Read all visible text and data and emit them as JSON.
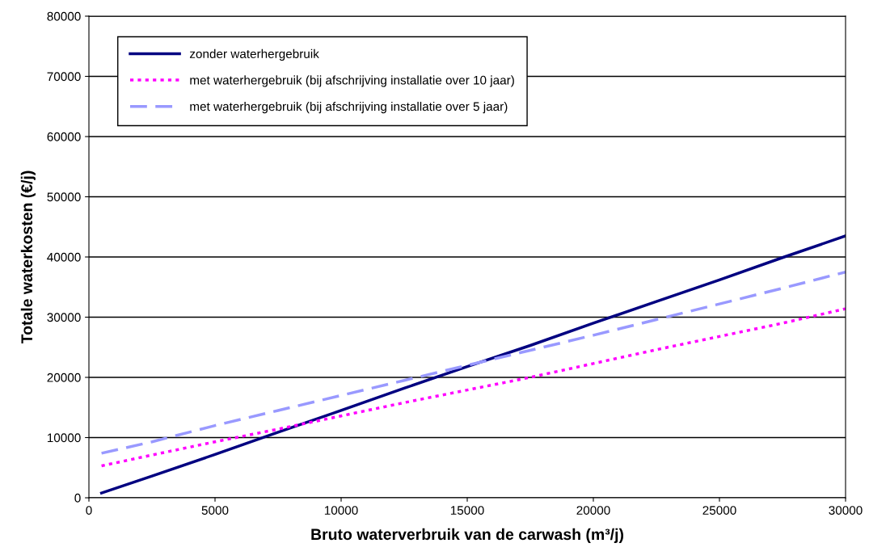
{
  "chart_data": {
    "type": "line",
    "xlabel": "Bruto waterverbruik van de carwash (m³/j)",
    "ylabel": "Totale waterkosten (€/j)",
    "x": [
      500,
      2500,
      5000,
      7500,
      10000,
      12500,
      15000,
      17500,
      20000,
      22500,
      25000,
      27500,
      30000
    ],
    "series": [
      {
        "name": "zonder waterhergebruik",
        "color": "#000080",
        "line_style": "solid",
        "values": [
          800,
          3600,
          7200,
          10900,
          14500,
          18200,
          21800,
          25300,
          29000,
          32600,
          36200,
          39900,
          43500
        ]
      },
      {
        "name": "met waterhergebruik (bij afschrijving installatie over 10 jaar)",
        "color": "#ff00ff",
        "line_style": "dotted",
        "values": [
          5300,
          7100,
          9300,
          11400,
          13600,
          15800,
          17900,
          20000,
          22300,
          24600,
          26800,
          29000,
          31400
        ]
      },
      {
        "name": "met waterhergebruik (bij afschrijving installatie over 5 jaar)",
        "color": "#9999ff",
        "line_style": "dashed",
        "values": [
          7400,
          9300,
          12000,
          14500,
          17000,
          19500,
          22000,
          24500,
          27000,
          29600,
          32200,
          34800,
          37500
        ]
      }
    ],
    "xlim": [
      0,
      30000
    ],
    "xticks": [
      0,
      5000,
      10000,
      15000,
      20000,
      25000,
      30000
    ],
    "ylim": [
      0,
      80000
    ],
    "yticks": [
      0,
      10000,
      20000,
      30000,
      40000,
      50000,
      60000,
      70000,
      80000
    ],
    "grid": "y",
    "legend": "top left"
  }
}
